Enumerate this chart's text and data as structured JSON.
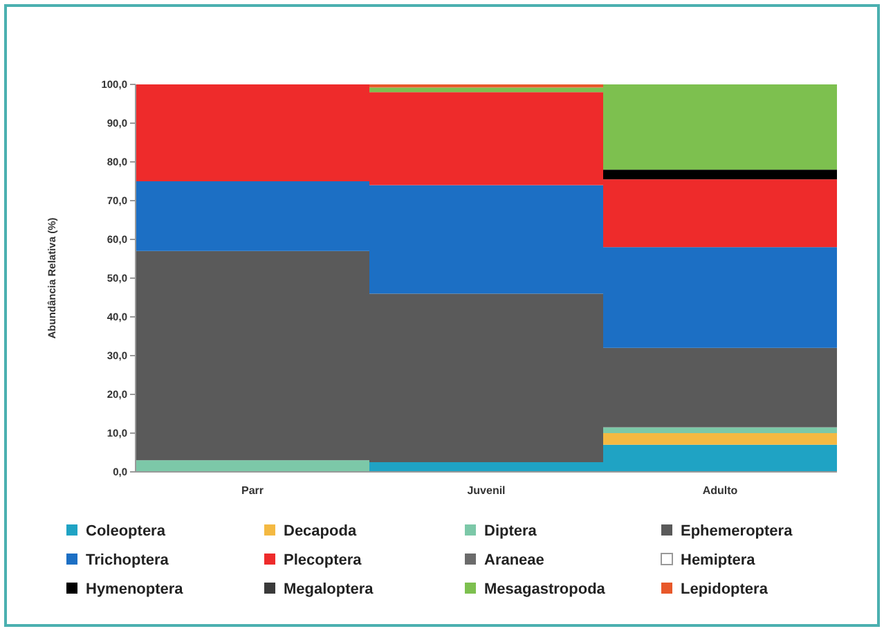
{
  "chart_data": {
    "type": "bar",
    "stacked": true,
    "ylabel": "Abundância Relativa (%)",
    "categories": [
      "Parr",
      "Juvenil",
      "Adulto"
    ],
    "ylim": [
      0,
      100
    ],
    "yticks": [
      {
        "value": 0,
        "label": "0,0"
      },
      {
        "value": 10,
        "label": "10,0"
      },
      {
        "value": 20,
        "label": "20,0"
      },
      {
        "value": 30,
        "label": "30,0"
      },
      {
        "value": 40,
        "label": "40,0"
      },
      {
        "value": 50,
        "label": "50,0"
      },
      {
        "value": 60,
        "label": "60,0"
      },
      {
        "value": 70,
        "label": "70,0"
      },
      {
        "value": 80,
        "label": "80,0"
      },
      {
        "value": 90,
        "label": "90,0"
      },
      {
        "value": 100,
        "label": "100,0"
      }
    ],
    "legend": "bottom",
    "series": [
      {
        "name": "Coleoptera",
        "color": "#1fa3c4",
        "values": [
          0,
          2.5,
          7
        ]
      },
      {
        "name": "Decapoda",
        "color": "#f4b942",
        "values": [
          0,
          0,
          3
        ]
      },
      {
        "name": "Diptera",
        "color": "#7cc8a8",
        "values": [
          3,
          0,
          1.5
        ]
      },
      {
        "name": "Ephemeroptera",
        "color": "#5a5a5a",
        "values": [
          54,
          43.5,
          20.5
        ]
      },
      {
        "name": "Trichoptera",
        "color": "#1c6fc4",
        "values": [
          18,
          28,
          26
        ]
      },
      {
        "name": "Plecoptera",
        "color": "#ee2b2b",
        "values": [
          25,
          24,
          17.5
        ]
      },
      {
        "name": "Araneae",
        "color": "#6b6b6b",
        "values": [
          0,
          0,
          0
        ]
      },
      {
        "name": "Hemiptera",
        "color": "#ffffff",
        "values": [
          0,
          0,
          0
        ]
      },
      {
        "name": "Hymenoptera",
        "color": "#000000",
        "values": [
          0,
          0,
          2.5
        ]
      },
      {
        "name": "Megaloptera",
        "color": "#3a3a3a",
        "values": [
          0,
          0,
          0
        ]
      },
      {
        "name": "Mesagastropoda",
        "color": "#7dc04f",
        "values": [
          0,
          1.2,
          22
        ]
      },
      {
        "name": "Lepidoptera",
        "color": "#e8582a",
        "values": [
          0,
          0.8,
          0
        ]
      }
    ]
  }
}
